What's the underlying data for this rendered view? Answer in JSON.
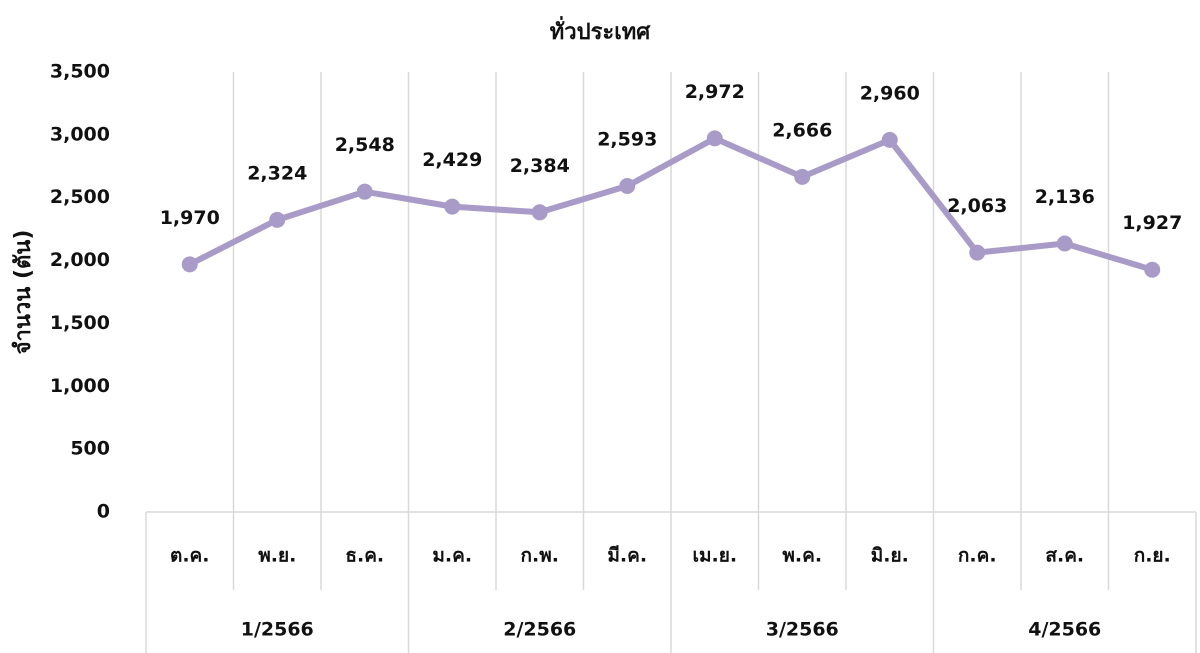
{
  "chart_data": {
    "type": "line",
    "title": "ทั่วประเทศ",
    "y_label": "จำนวน (ตัน)",
    "groups": [
      {
        "name": "1/2566",
        "categories": [
          "ต.ค.",
          "พ.ย.",
          "ธ.ค."
        ]
      },
      {
        "name": "2/2566",
        "categories": [
          "ม.ค.",
          "ก.พ.",
          "มี.ค."
        ]
      },
      {
        "name": "3/2566",
        "categories": [
          "เม.ย.",
          "พ.ค.",
          "มิ.ย."
        ]
      },
      {
        "name": "4/2566",
        "categories": [
          "ก.ค.",
          "ส.ค.",
          "ก.ย."
        ]
      }
    ],
    "values": [
      1970,
      2324,
      2548,
      2429,
      2384,
      2593,
      2972,
      2666,
      2960,
      2063,
      2136,
      1927
    ],
    "value_labels": [
      "1,970",
      "2,324",
      "2,548",
      "2,429",
      "2,384",
      "2,593",
      "2,972",
      "2,666",
      "2,960",
      "2,063",
      "2,136",
      "1,927"
    ],
    "color": "#a99bc8",
    "ylim": [
      0,
      3500
    ],
    "yticks": [
      0,
      500,
      {
        "value": 1000,
        "label": "1,000"
      },
      {
        "value": 1500,
        "label": "1,500"
      },
      {
        "value": 2000,
        "label": "2,000"
      },
      {
        "value": 2500,
        "label": "2,500"
      },
      {
        "value": 3000,
        "label": "3,000"
      },
      {
        "value": 3500,
        "label": "3,500"
      }
    ],
    "grid": true
  }
}
